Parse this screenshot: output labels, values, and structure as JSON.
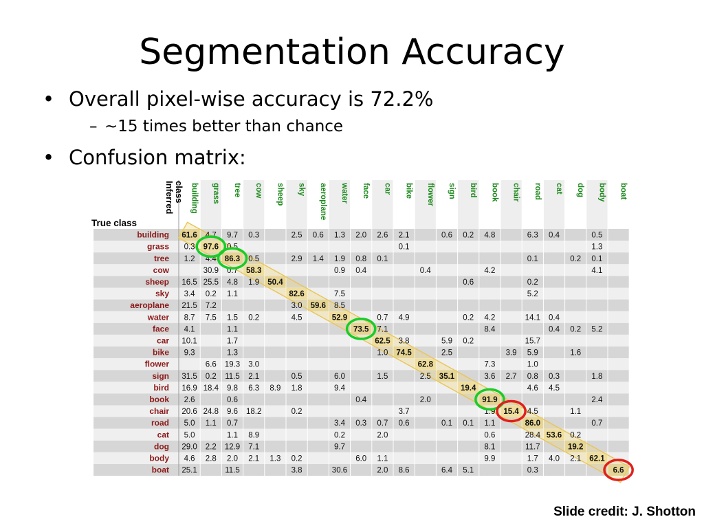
{
  "slide": {
    "title": "Segmentation Accuracy",
    "bullets": [
      {
        "symbol": "•",
        "text": "Overall pixel-wise accuracy is 72.2%"
      },
      {
        "symbol": "–",
        "text": "~15 times better than chance"
      },
      {
        "symbol": "•",
        "text": "Confusion matrix:"
      }
    ],
    "credit": "Slide credit: J. Shotton"
  },
  "chart_data": {
    "type": "table",
    "row_axis_label": "True class",
    "col_axis_label": "Inferred class",
    "classes": [
      "building",
      "grass",
      "tree",
      "cow",
      "sheep",
      "sky",
      "aeroplane",
      "water",
      "face",
      "car",
      "bike",
      "flower",
      "sign",
      "bird",
      "book",
      "chair",
      "road",
      "cat",
      "dog",
      "body",
      "boat"
    ],
    "rows": [
      [
        "61.6",
        "4.7",
        "9.7",
        "0.3",
        "",
        "2.5",
        "0.6",
        "1.3",
        "2.0",
        "2.6",
        "2.1",
        "",
        "0.6",
        "0.2",
        "4.8",
        "",
        "6.3",
        "0.4",
        "",
        "0.5",
        ""
      ],
      [
        "0.3",
        "97.6",
        "0.5",
        "",
        "",
        "",
        "",
        "",
        "",
        "",
        "0.1",
        "",
        "",
        "",
        "",
        "",
        "",
        "",
        "",
        "1.3",
        ""
      ],
      [
        "1.2",
        "4.4",
        "86.3",
        "0.5",
        "",
        "2.9",
        "1.4",
        "1.9",
        "0.8",
        "0.1",
        "",
        "",
        "",
        "",
        "",
        "",
        "0.1",
        "",
        "0.2",
        "0.1",
        ""
      ],
      [
        "",
        "30.9",
        "0.7",
        "58.3",
        "",
        "",
        "",
        "0.9",
        "0.4",
        "",
        "",
        "0.4",
        "",
        "",
        "4.2",
        "",
        "",
        "",
        "",
        "4.1",
        ""
      ],
      [
        "16.5",
        "25.5",
        "4.8",
        "1.9",
        "50.4",
        "",
        "",
        "",
        "",
        "",
        "",
        "",
        "",
        "0.6",
        "",
        "",
        "0.2",
        "",
        "",
        "",
        ""
      ],
      [
        "3.4",
        "0.2",
        "1.1",
        "",
        "",
        "82.6",
        "",
        "7.5",
        "",
        "",
        "",
        "",
        "",
        "",
        "",
        "",
        "5.2",
        "",
        "",
        "",
        ""
      ],
      [
        "21.5",
        "7.2",
        "",
        "",
        "",
        "3.0",
        "59.6",
        "8.5",
        "",
        "",
        "",
        "",
        "",
        "",
        "",
        "",
        "",
        "",
        "",
        "",
        ""
      ],
      [
        "8.7",
        "7.5",
        "1.5",
        "0.2",
        "",
        "4.5",
        "",
        "52.9",
        "",
        "0.7",
        "4.9",
        "",
        "",
        "0.2",
        "4.2",
        "",
        "14.1",
        "0.4",
        "",
        "",
        ""
      ],
      [
        "4.1",
        "",
        "1.1",
        "",
        "",
        "",
        "",
        "",
        "73.5",
        "7.1",
        "",
        "",
        "",
        "",
        "8.4",
        "",
        "",
        "0.4",
        "0.2",
        "5.2",
        ""
      ],
      [
        "10.1",
        "",
        "1.7",
        "",
        "",
        "",
        "",
        "",
        "",
        "62.5",
        "3.8",
        "",
        "5.9",
        "0.2",
        "",
        "",
        "15.7",
        "",
        "",
        "",
        ""
      ],
      [
        "9.3",
        "",
        "1.3",
        "",
        "",
        "",
        "",
        "",
        "",
        "1.0",
        "74.5",
        "",
        "2.5",
        "",
        "",
        "3.9",
        "5.9",
        "",
        "1.6",
        "",
        ""
      ],
      [
        "",
        "6.6",
        "19.3",
        "3.0",
        "",
        "",
        "",
        "",
        "",
        "",
        "",
        "62.8",
        "",
        "",
        "7.3",
        "",
        "1.0",
        "",
        "",
        "",
        ""
      ],
      [
        "31.5",
        "0.2",
        "11.5",
        "2.1",
        "",
        "0.5",
        "",
        "6.0",
        "",
        "1.5",
        "",
        "2.5",
        "35.1",
        "",
        "3.6",
        "2.7",
        "0.8",
        "0.3",
        "",
        "1.8",
        ""
      ],
      [
        "16.9",
        "18.4",
        "9.8",
        "6.3",
        "8.9",
        "1.8",
        "",
        "9.4",
        "",
        "",
        "",
        "",
        "",
        "19.4",
        "",
        "",
        "4.6",
        "4.5",
        "",
        "",
        ""
      ],
      [
        "2.6",
        "",
        "0.6",
        "",
        "",
        "",
        "",
        "",
        "0.4",
        "",
        "",
        "2.0",
        "",
        "",
        "91.9",
        "",
        "",
        "",
        "",
        "2.4",
        ""
      ],
      [
        "20.6",
        "24.8",
        "9.6",
        "18.2",
        "",
        "0.2",
        "",
        "",
        "",
        "",
        "3.7",
        "",
        "",
        "",
        "1.9",
        "15.4",
        "4.5",
        "",
        "1.1",
        "",
        ""
      ],
      [
        "5.0",
        "1.1",
        "0.7",
        "",
        "",
        "",
        "",
        "3.4",
        "0.3",
        "0.7",
        "0.6",
        "",
        "0.1",
        "0.1",
        "1.1",
        "",
        "86.0",
        "",
        "",
        "0.7",
        ""
      ],
      [
        "5.0",
        "",
        "1.1",
        "8.9",
        "",
        "",
        "",
        "0.2",
        "",
        "2.0",
        "",
        "",
        "",
        "",
        "0.6",
        "",
        "28.4",
        "53.6",
        "0.2",
        "",
        ""
      ],
      [
        "29.0",
        "2.2",
        "12.9",
        "7.1",
        "",
        "",
        "",
        "9.7",
        "",
        "",
        "",
        "",
        "",
        "",
        "8.1",
        "",
        "11.7",
        "",
        "19.2",
        "",
        ""
      ],
      [
        "4.6",
        "2.8",
        "2.0",
        "2.1",
        "1.3",
        "0.2",
        "",
        "",
        "6.0",
        "1.1",
        "",
        "",
        "",
        "",
        "9.9",
        "",
        "1.7",
        "4.0",
        "2.1",
        "62.1",
        ""
      ],
      [
        "25.1",
        "",
        "11.5",
        "",
        "",
        "3.8",
        "",
        "30.6",
        "",
        "2.0",
        "8.6",
        "",
        "6.4",
        "5.1",
        "",
        "",
        "0.3",
        "",
        "",
        "",
        "6.6"
      ]
    ],
    "highlight_color": "#f0d36a",
    "good_circle_color": "#18cc2a",
    "bad_circle_color": "#e0201c",
    "good_circles": [
      "grass",
      "tree",
      "face",
      "book"
    ],
    "bad_circles": [
      "chair",
      "boat"
    ],
    "row_label_color": "#8c1a1a",
    "col_label_color": "#1e8a1e"
  }
}
